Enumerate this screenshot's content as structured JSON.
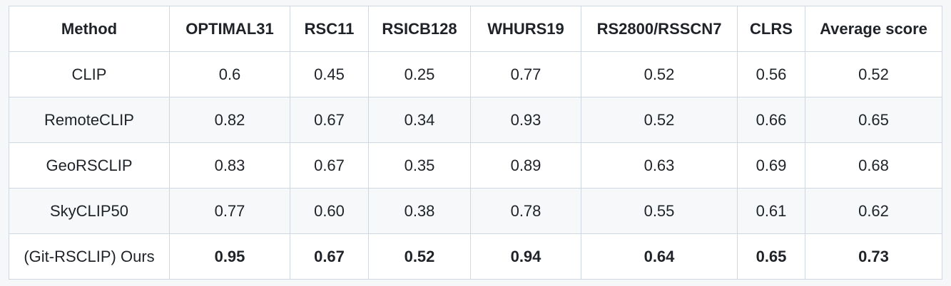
{
  "table": {
    "headers": [
      "Method",
      "OPTIMAL31",
      "RSC11",
      "RSICB128",
      "WHURS19",
      "RS2800/RSSCN7",
      "CLRS",
      "Average score"
    ],
    "rows": [
      {
        "cells": [
          "CLIP",
          "0.6",
          "0.45",
          "0.25",
          "0.77",
          "0.52",
          "0.56",
          "0.52"
        ],
        "bold": false
      },
      {
        "cells": [
          "RemoteCLIP",
          "0.82",
          "0.67",
          "0.34",
          "0.93",
          "0.52",
          "0.66",
          "0.65"
        ],
        "bold": false
      },
      {
        "cells": [
          "GeoRSCLIP",
          "0.83",
          "0.67",
          "0.35",
          "0.89",
          "0.63",
          "0.69",
          "0.68"
        ],
        "bold": false
      },
      {
        "cells": [
          "SkyCLIP50",
          "0.77",
          "0.60",
          "0.38",
          "0.78",
          "0.55",
          "0.61",
          "0.62"
        ],
        "bold": false
      },
      {
        "cells": [
          "(Git-RSCLIP) Ours",
          "0.95",
          "0.67",
          "0.52",
          "0.94",
          "0.64",
          "0.65",
          "0.73"
        ],
        "bold": true
      }
    ]
  }
}
